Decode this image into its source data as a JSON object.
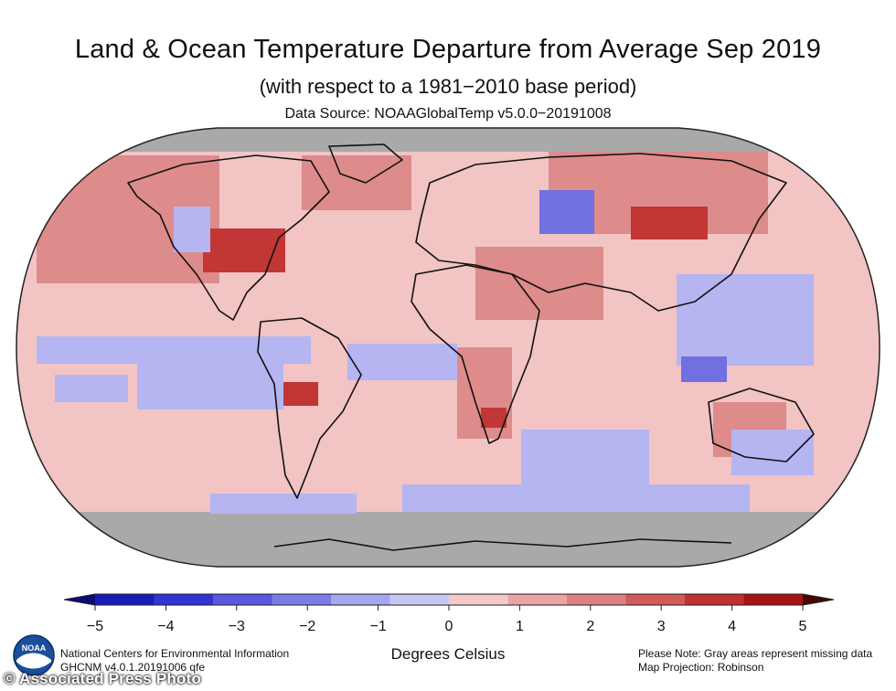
{
  "header": {
    "title": "Land & Ocean Temperature Departure from Average Sep 2019",
    "subtitle": "(with respect to a 1981−2010 base period)",
    "source": "Data Source: NOAAGlobalTemp v5.0.0−20191008"
  },
  "colorbar": {
    "ticks": [
      "−5",
      "−4",
      "−3",
      "−2",
      "−1",
      "0",
      "1",
      "2",
      "3",
      "4",
      "5"
    ],
    "range": [
      -5,
      5
    ],
    "unit_label": "Degrees Celsius",
    "colors": [
      "#0a0a7a",
      "#1b1bb8",
      "#3333d6",
      "#5858e0",
      "#7c7ce8",
      "#a7a7f0",
      "#c8c8f6",
      "#f6c8c8",
      "#eba4a4",
      "#de8080",
      "#d25a5a",
      "#c23030",
      "#a81212",
      "#4a0505"
    ]
  },
  "map": {
    "projection": "Robinson",
    "ocean_color": "#f2c4c4",
    "missing_color": "#a9a9a9",
    "warm_color": "#d46b6b",
    "hot_color": "#c23636",
    "cool_color": "#b5b5f2",
    "cold_color": "#7070e0"
  },
  "footer": {
    "org": "National Centers for Environmental Information",
    "dataset": "GHCNM v4.0.1.20191006 qfe",
    "note": "Please Note: Gray areas represent missing data",
    "projection": "Map Projection: Robinson",
    "credit": "© Associated Press Photo",
    "logo_text": "NOAA"
  }
}
